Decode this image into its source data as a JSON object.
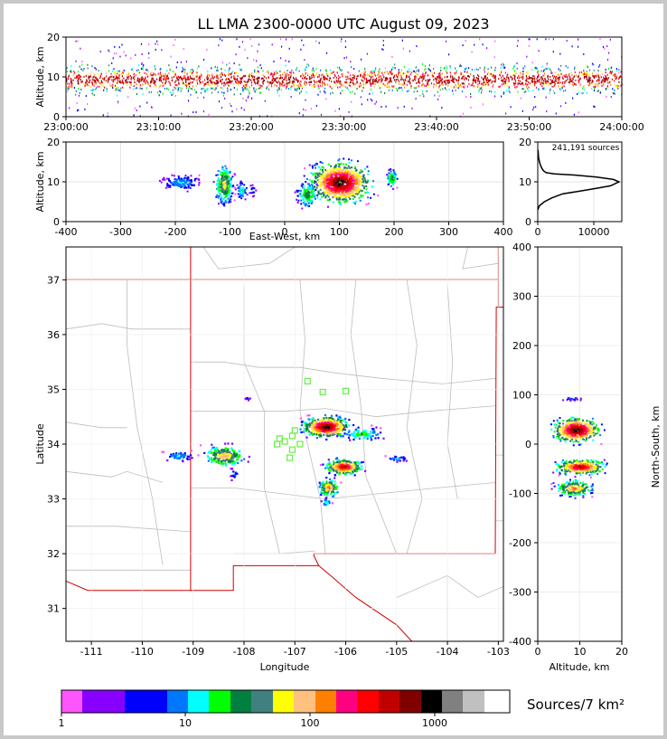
{
  "title": "LL LMA 2300-0000 UTC August 09, 2023",
  "chart_data": [
    {
      "type": "heatmap",
      "panel": "altitude-time",
      "ylabel": "Altitude, km",
      "ylim": [
        0,
        20
      ],
      "yticks": [
        "0",
        "10",
        "20"
      ],
      "xticks": [
        "23:00:00",
        "23:10:00",
        "23:20:00",
        "23:30:00",
        "23:40:00",
        "23:50:00",
        "24:00:00"
      ]
    },
    {
      "type": "heatmap",
      "panel": "altitude-east-west",
      "xlabel": "East-West, km",
      "ylabel": "Altitude, km",
      "xlim": [
        -400,
        400
      ],
      "ylim": [
        0,
        20
      ],
      "xticks": [
        "-400",
        "-300",
        "-200",
        "-100",
        "0",
        "100",
        "200",
        "300",
        "400"
      ],
      "yticks": [
        "0",
        "10",
        "20"
      ]
    },
    {
      "type": "line",
      "panel": "altitude-histogram",
      "annotation": "241,191 sources",
      "xlim": [
        0,
        15000
      ],
      "ylim": [
        0,
        20
      ],
      "xticks": [
        "0",
        "10000"
      ],
      "yticks": [
        "0",
        "10",
        "20"
      ],
      "x": [
        0,
        300,
        1200,
        2600,
        4500,
        6800,
        9000,
        11000,
        13000,
        14500,
        13500,
        10500,
        6500,
        3000,
        1500,
        1000,
        700,
        400,
        150,
        50
      ],
      "y": [
        3,
        4,
        5,
        6,
        7,
        7.5,
        8,
        8.5,
        9,
        10,
        10.6,
        11.2,
        11.7,
        12,
        12.3,
        12.8,
        13.5,
        14.5,
        16,
        18
      ]
    },
    {
      "type": "heatmap",
      "panel": "plan-view-map",
      "xlabel": "Longitude",
      "ylabel": "Latitude",
      "xlim": [
        -111.5,
        -102.9
      ],
      "ylim": [
        30.4,
        37.6
      ],
      "xticks": [
        "-111",
        "-110",
        "-109",
        "-108",
        "-107",
        "-106",
        "-105",
        "-104",
        "-103"
      ],
      "yticks": [
        "31",
        "32",
        "33",
        "34",
        "35",
        "36",
        "37"
      ],
      "stations_lon": [
        -106.75,
        -106.45,
        -106.0,
        -107.3,
        -107.2,
        -107.05,
        -106.9,
        -107.05,
        -107.35,
        -107.1,
        -107.0
      ],
      "stations_lat": [
        35.15,
        34.95,
        34.97,
        34.1,
        34.05,
        34.15,
        34.0,
        33.9,
        34.0,
        33.75,
        34.25
      ]
    },
    {
      "type": "heatmap",
      "panel": "north-south-altitude",
      "xlabel": "Altitude, km",
      "ylabel": "North-South, km",
      "xlim": [
        0,
        20
      ],
      "ylim": [
        -400,
        400
      ],
      "xticks": [
        "0",
        "10",
        "20"
      ],
      "yticks": [
        "-400",
        "-300",
        "-200",
        "-100",
        "0",
        "100",
        "200",
        "300",
        "400"
      ]
    }
  ],
  "colorbar": {
    "label": "Sources/7 km²",
    "ticks": [
      "1",
      "10",
      "100",
      "1000"
    ],
    "colors": [
      "#ff55ff",
      "#8800ff",
      "#0000ff",
      "#0077ff",
      "#00ffff",
      "#00ff00",
      "#008040",
      "#408080",
      "#ffff00",
      "#ffc080",
      "#ff8000",
      "#ff0080",
      "#ff0000",
      "#c00000",
      "#800000",
      "#000000",
      "#808080",
      "#c0c0c0",
      "#ffffff"
    ]
  }
}
